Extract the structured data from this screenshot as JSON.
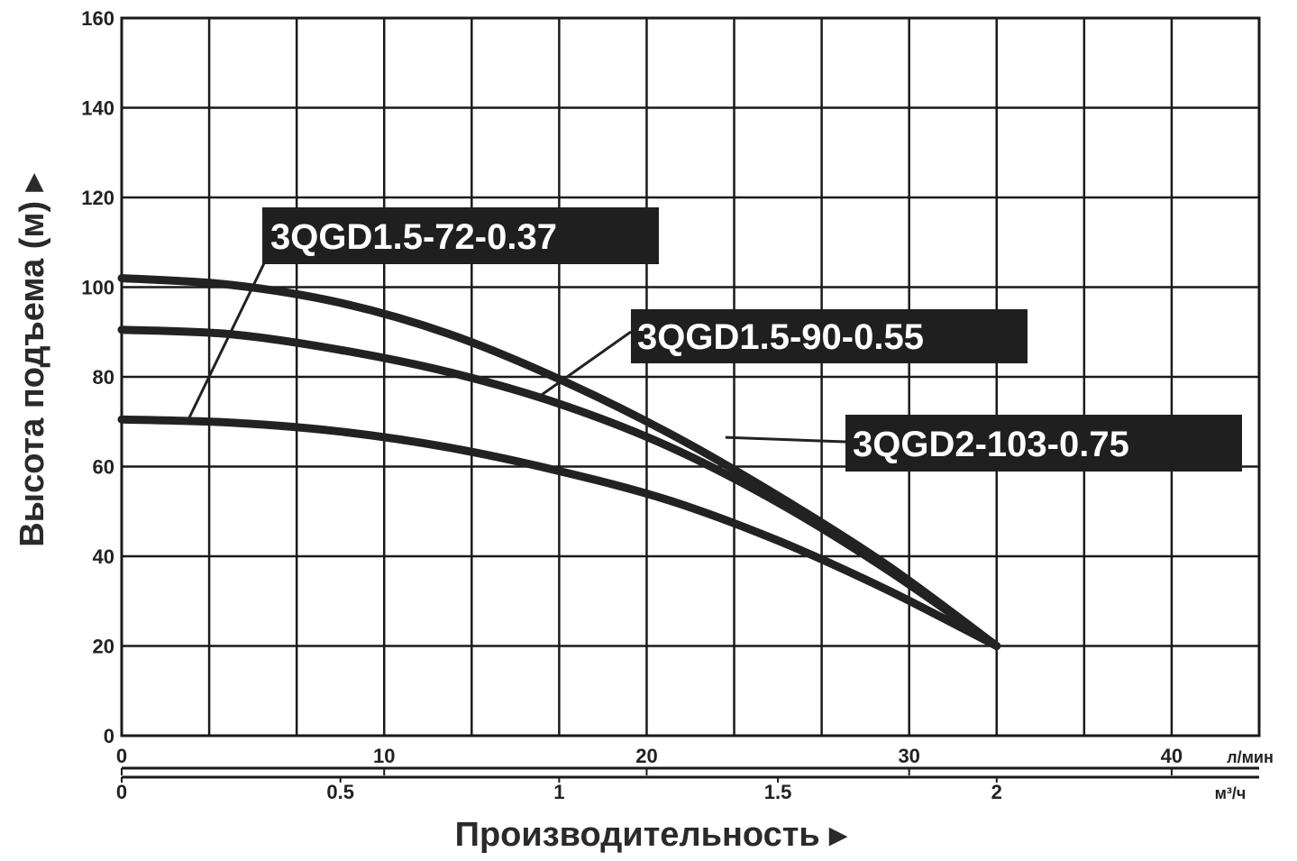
{
  "chart_data": {
    "type": "line",
    "ylabel": "Высота подъема (м) ▸",
    "xlabel": "Производительность ▸",
    "ylim": [
      0,
      160
    ],
    "yticks": [
      "0",
      "20",
      "40",
      "60",
      "80",
      "100",
      "120",
      "140",
      "160"
    ],
    "x_axis_lmin": {
      "unit": "л/мин",
      "ticks": [
        "0",
        "10",
        "20",
        "30",
        "40"
      ]
    },
    "x_axis_m3h": {
      "unit": "м³/ч",
      "ticks": [
        "0",
        "0.5",
        "1",
        "1.5",
        "2"
      ]
    },
    "xlim_m3h": [
      0,
      2.6
    ],
    "grid": true,
    "series": [
      {
        "name": "3QGD1.5-72-0.37",
        "x": [
          0,
          0.25,
          0.5,
          0.75,
          1.0,
          1.25,
          1.5,
          1.75,
          2.0
        ],
        "y": [
          70.5,
          69.8,
          67.8,
          64.2,
          59.0,
          52.5,
          43.5,
          32.5,
          20.0
        ]
      },
      {
        "name": "3QGD1.5-90-0.55",
        "x": [
          0,
          0.25,
          0.5,
          0.75,
          1.0,
          1.25,
          1.5,
          1.75,
          2.0
        ],
        "y": [
          90.5,
          89.5,
          86.0,
          81.0,
          74.0,
          64.5,
          52.0,
          37.0,
          20.0
        ]
      },
      {
        "name": "3QGD2-103-0.75",
        "x": [
          0,
          0.25,
          0.5,
          0.75,
          1.0,
          1.25,
          1.5,
          1.75,
          2.0
        ],
        "y": [
          102.0,
          100.5,
          96.5,
          89.5,
          79.5,
          67.5,
          53.5,
          38.0,
          20.0
        ]
      }
    ]
  }
}
